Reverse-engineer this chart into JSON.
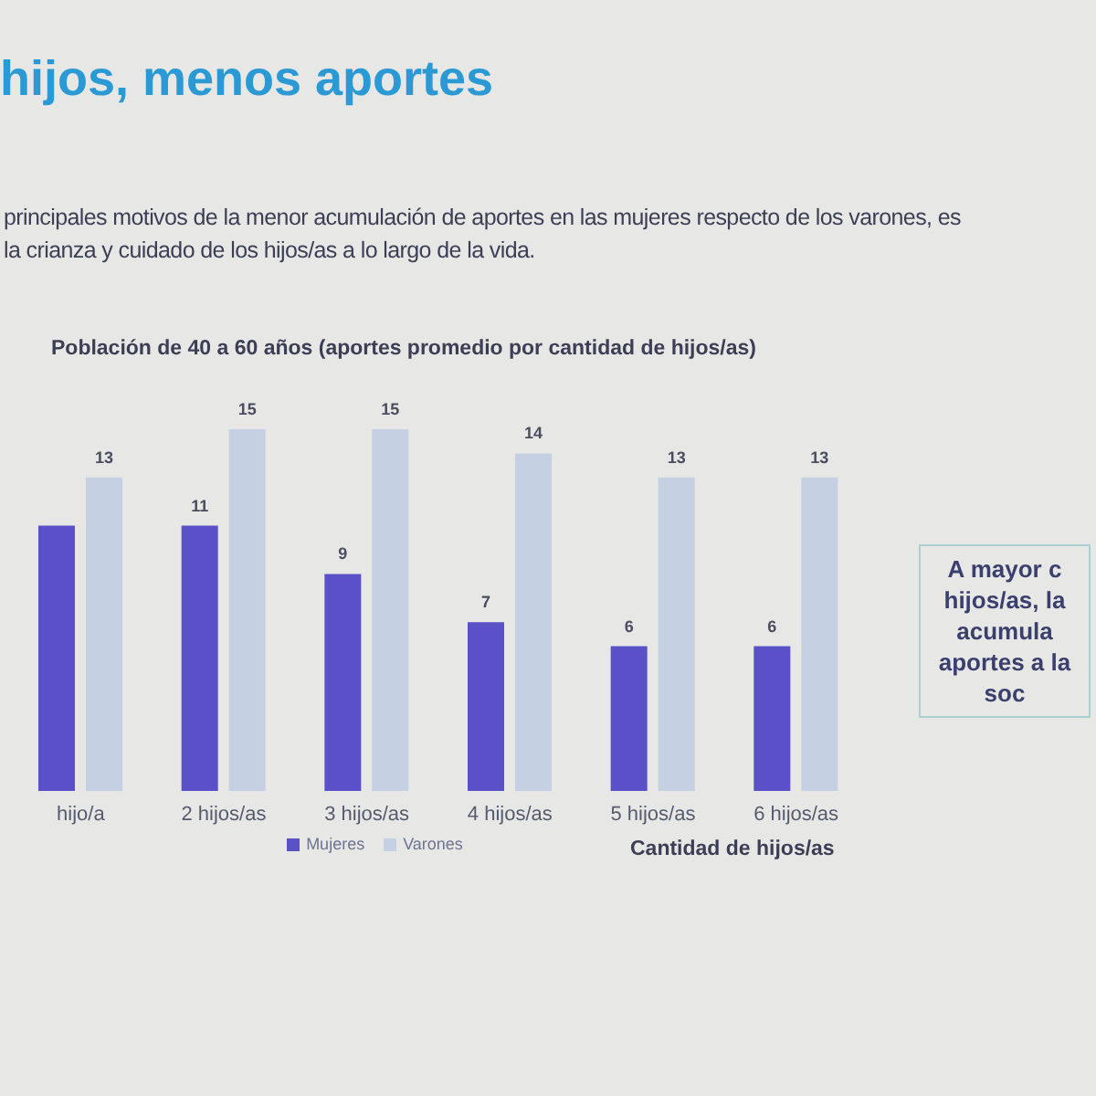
{
  "chart_data": {
    "type": "bar",
    "title": "Población de 40 a 60 años (aportes promedio por cantidad de hijos/as)",
    "subtitle": "hijos, menos aportes",
    "annotations": [
      "principales motivos de la menor acumulación de aportes en las mujeres respecto de los varones, es\nla crianza y cuidado de los hijos/as a lo largo de la vida.",
      "A mayor c\nhijos/as, la\nacumula\naportes a la\nsoc"
    ],
    "xlabel": "Cantidad de hijos/as",
    "categories": [
      "hijo/a",
      "2 hijos/as",
      "3 hijos/as",
      "4 hijos/as",
      "5 hijos/as",
      "6 hijos/as"
    ],
    "series": [
      {
        "name": "Mujeres",
        "color": "#5a50c8",
        "values": [
          11,
          11,
          9,
          7,
          6,
          6
        ],
        "value_labels": [
          null,
          "11",
          "9",
          "7",
          "6",
          "6"
        ]
      },
      {
        "name": "Varones",
        "color": "#c5d0e2",
        "values": [
          13,
          15,
          15,
          14,
          13,
          13
        ],
        "value_labels": [
          "13",
          "15",
          "15",
          "14",
          "13",
          "13"
        ]
      }
    ],
    "legend": "bottom"
  }
}
